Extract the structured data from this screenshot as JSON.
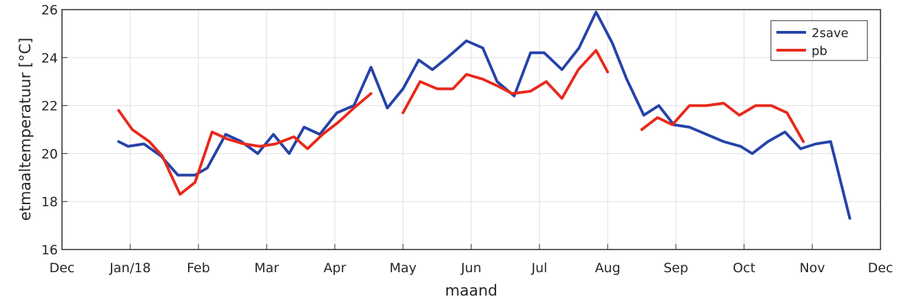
{
  "chart_data": {
    "type": "line",
    "xlabel": "maand",
    "ylabel": "etmaaltemperatuur [°C]",
    "x_ticks": [
      "Dec",
      "Jan/18",
      "Feb",
      "Mar",
      "Apr",
      "May",
      "Jun",
      "Jul",
      "Aug",
      "Sep",
      "Oct",
      "Nov",
      "Dec"
    ],
    "xlim": [
      0,
      12
    ],
    "ylim": [
      16,
      26
    ],
    "y_ticks": [
      16,
      18,
      20,
      22,
      24,
      26
    ],
    "grid": true,
    "legend_position": "top-right",
    "colors": {
      "2save": "#2643a8",
      "pb": "#e8291c"
    },
    "series": [
      {
        "name": "2save",
        "segments": [
          [
            [
              0.83,
              20.5
            ],
            [
              0.97,
              20.3
            ],
            [
              1.2,
              20.4
            ],
            [
              1.45,
              19.9
            ],
            [
              1.7,
              19.1
            ],
            [
              1.95,
              19.1
            ],
            [
              2.13,
              19.4
            ],
            [
              2.4,
              20.8
            ],
            [
              2.63,
              20.5
            ],
            [
              2.87,
              20.0
            ],
            [
              3.1,
              20.8
            ],
            [
              3.33,
              20.0
            ],
            [
              3.55,
              21.1
            ],
            [
              3.78,
              20.8
            ],
            [
              4.03,
              21.7
            ],
            [
              4.28,
              22.0
            ],
            [
              4.53,
              23.6
            ],
            [
              4.77,
              21.9
            ],
            [
              5.0,
              22.7
            ],
            [
              5.23,
              23.9
            ],
            [
              5.43,
              23.5
            ],
            [
              5.65,
              24.0
            ],
            [
              5.93,
              24.7
            ],
            [
              6.17,
              24.4
            ],
            [
              6.38,
              23.0
            ],
            [
              6.63,
              22.4
            ],
            [
              6.87,
              24.2
            ],
            [
              7.07,
              24.2
            ],
            [
              7.33,
              23.5
            ],
            [
              7.58,
              24.4
            ],
            [
              7.83,
              25.9
            ],
            [
              8.07,
              24.6
            ],
            [
              8.28,
              23.1
            ],
            [
              8.53,
              21.6
            ],
            [
              8.75,
              22.0
            ],
            [
              8.97,
              21.2
            ],
            [
              9.2,
              21.1
            ],
            [
              9.45,
              20.8
            ],
            [
              9.7,
              20.5
            ],
            [
              9.95,
              20.3
            ],
            [
              10.12,
              20.0
            ],
            [
              10.35,
              20.5
            ],
            [
              10.6,
              20.9
            ],
            [
              10.83,
              20.2
            ],
            [
              11.05,
              20.4
            ],
            [
              11.27,
              20.5
            ],
            [
              11.55,
              17.3
            ]
          ]
        ]
      },
      {
        "name": "pb",
        "segments": [
          [
            [
              0.83,
              21.8
            ],
            [
              1.03,
              21.0
            ],
            [
              1.28,
              20.5
            ],
            [
              1.47,
              19.9
            ],
            [
              1.73,
              18.3
            ],
            [
              1.95,
              18.8
            ],
            [
              2.2,
              20.9
            ],
            [
              2.43,
              20.6
            ],
            [
              2.67,
              20.4
            ],
            [
              2.9,
              20.3
            ],
            [
              3.13,
              20.4
            ],
            [
              3.4,
              20.7
            ],
            [
              3.6,
              20.2
            ],
            [
              3.82,
              20.8
            ],
            [
              4.05,
              21.3
            ],
            [
              4.28,
              21.9
            ],
            [
              4.53,
              22.5
            ]
          ],
          [
            [
              5.0,
              21.7
            ],
            [
              5.25,
              23.0
            ],
            [
              5.5,
              22.7
            ],
            [
              5.73,
              22.7
            ],
            [
              5.93,
              23.3
            ],
            [
              6.17,
              23.1
            ],
            [
              6.4,
              22.8
            ],
            [
              6.6,
              22.5
            ],
            [
              6.87,
              22.6
            ],
            [
              7.1,
              23.0
            ],
            [
              7.33,
              22.3
            ],
            [
              7.57,
              23.5
            ],
            [
              7.83,
              24.3
            ],
            [
              8.0,
              23.4
            ]
          ],
          [
            [
              8.5,
              21.0
            ],
            [
              8.73,
              21.5
            ],
            [
              8.95,
              21.2
            ],
            [
              9.2,
              22.0
            ],
            [
              9.45,
              22.0
            ],
            [
              9.7,
              22.1
            ],
            [
              9.93,
              21.6
            ],
            [
              10.17,
              22.0
            ],
            [
              10.4,
              22.0
            ],
            [
              10.63,
              21.7
            ],
            [
              10.87,
              20.5
            ]
          ]
        ]
      }
    ]
  }
}
